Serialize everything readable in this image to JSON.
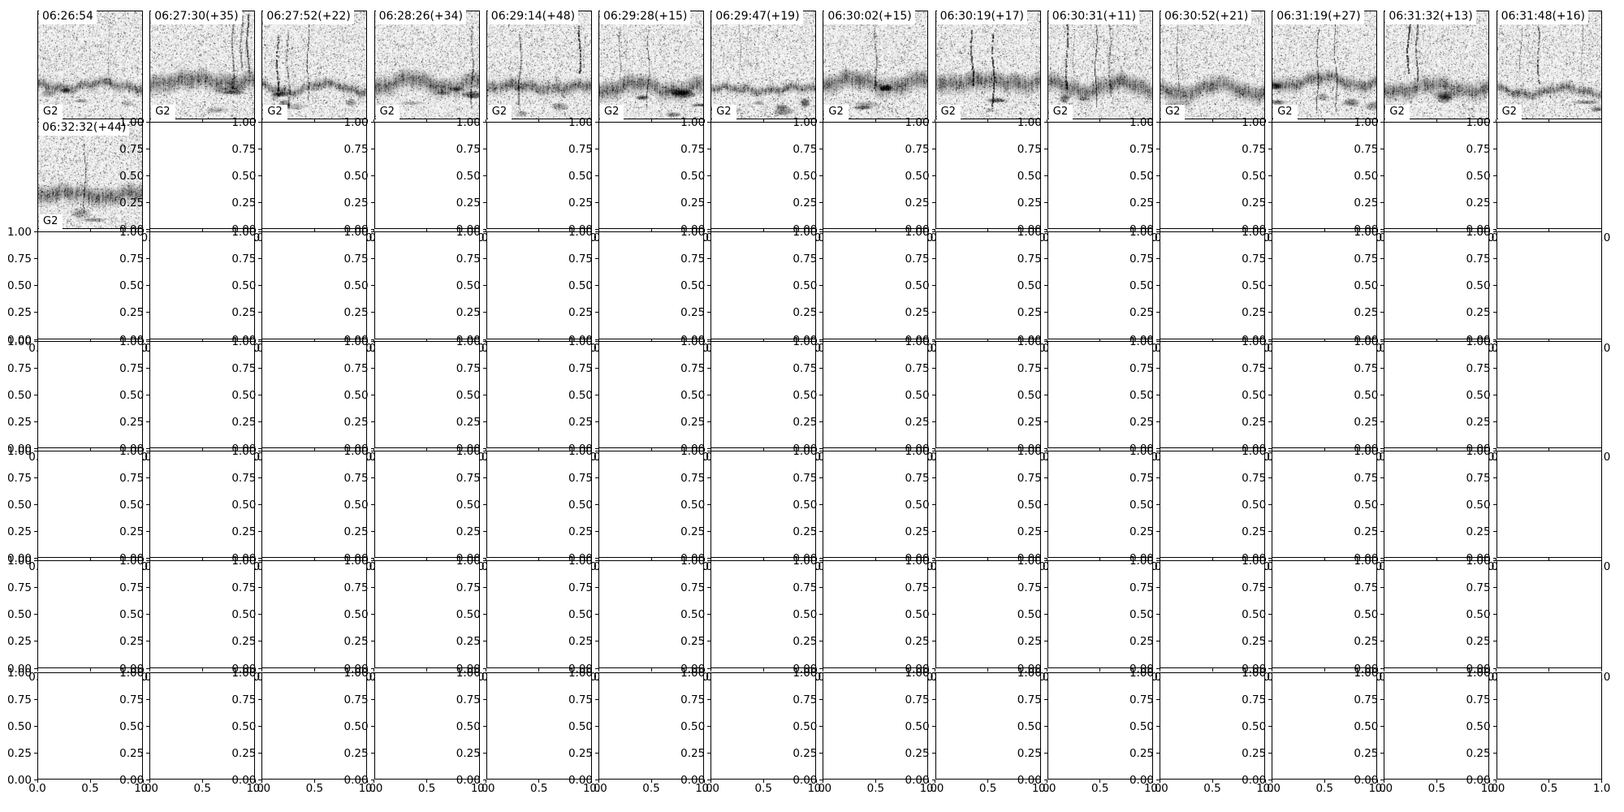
{
  "chart_data": {
    "type": "heatmap",
    "subtype": "spectrogram_thumbnail_grid",
    "grid": {
      "rows": 7,
      "cols": 14,
      "filled_tiles": 15,
      "empty_subplots": 83
    },
    "tiles": [
      {
        "title": "06:26:54",
        "tag": "G2"
      },
      {
        "title": "06:27:30(+35)",
        "tag": "G2"
      },
      {
        "title": "06:27:52(+22)",
        "tag": "G2"
      },
      {
        "title": "06:28:26(+34)",
        "tag": "G2"
      },
      {
        "title": "06:29:14(+48)",
        "tag": "G2"
      },
      {
        "title": "06:29:28(+15)",
        "tag": "G2"
      },
      {
        "title": "06:29:47(+19)",
        "tag": "G2"
      },
      {
        "title": "06:30:02(+15)",
        "tag": "G2"
      },
      {
        "title": "06:30:19(+17)",
        "tag": "G2"
      },
      {
        "title": "06:30:31(+11)",
        "tag": "G2"
      },
      {
        "title": "06:30:52(+21)",
        "tag": "G2"
      },
      {
        "title": "06:31:19(+27)",
        "tag": "G2"
      },
      {
        "title": "06:31:32(+13)",
        "tag": "G2"
      },
      {
        "title": "06:31:48(+16)",
        "tag": "G2"
      },
      {
        "title": "06:32:32(+44)",
        "tag": "G2"
      }
    ],
    "axes": {
      "y_tick_labels": [
        "1.00",
        "0.75",
        "0.50",
        "0.25",
        "0.00"
      ],
      "x_tick_labels": [
        "0.0",
        "0.5",
        "1.0"
      ],
      "ylim": [
        0,
        1
      ],
      "xlim": [
        0,
        1
      ],
      "grid_lines": "off",
      "right_edge_clipped_label": "0"
    },
    "colors": {
      "ink": "#000000",
      "background": "#ffffff"
    }
  }
}
